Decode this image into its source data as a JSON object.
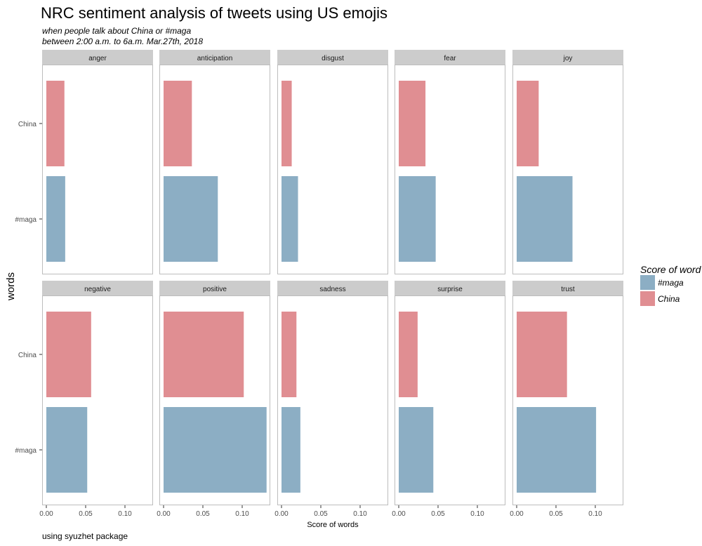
{
  "chart_data": {
    "type": "bar",
    "orientation": "horizontal",
    "title": "NRC sentiment analysis of tweets using US emojis",
    "subtitle": [
      "when people talk about China or #maga",
      "between 2:00 a.m. to 6a.m. Mar.27th, 2018"
    ],
    "caption": "using syuzhet package",
    "xlabel": "Score of words",
    "ylabel": "words",
    "xlim": [
      0,
      0.13
    ],
    "x_ticks": [
      0,
      0.05,
      0.1
    ],
    "x_tick_labels": [
      "0.00",
      "0.05",
      "0.10"
    ],
    "categories": [
      "China",
      "#maga"
    ],
    "legend": {
      "title": "Score of word",
      "position": "right",
      "items": [
        {
          "label": "#maga",
          "color": "#8CAEC4"
        },
        {
          "label": "China",
          "color": "#E08E92"
        }
      ]
    },
    "facets": [
      {
        "name": "anger",
        "values": {
          "China": 0.023,
          "#maga": 0.024
        }
      },
      {
        "name": "anticipation",
        "values": {
          "China": 0.036,
          "#maga": 0.069
        }
      },
      {
        "name": "disgust",
        "values": {
          "China": 0.013,
          "#maga": 0.021
        }
      },
      {
        "name": "fear",
        "values": {
          "China": 0.034,
          "#maga": 0.047
        }
      },
      {
        "name": "joy",
        "values": {
          "China": 0.028,
          "#maga": 0.071
        }
      },
      {
        "name": "negative",
        "values": {
          "China": 0.057,
          "#maga": 0.052
        }
      },
      {
        "name": "positive",
        "values": {
          "China": 0.102,
          "#maga": 0.131
        }
      },
      {
        "name": "sadness",
        "values": {
          "China": 0.019,
          "#maga": 0.024
        }
      },
      {
        "name": "surprise",
        "values": {
          "China": 0.024,
          "#maga": 0.044
        }
      },
      {
        "name": "trust",
        "values": {
          "China": 0.064,
          "#maga": 0.101
        }
      }
    ],
    "colors": {
      "#maga": "#8CAEC4",
      "China": "#E08E92"
    },
    "grid": false
  }
}
